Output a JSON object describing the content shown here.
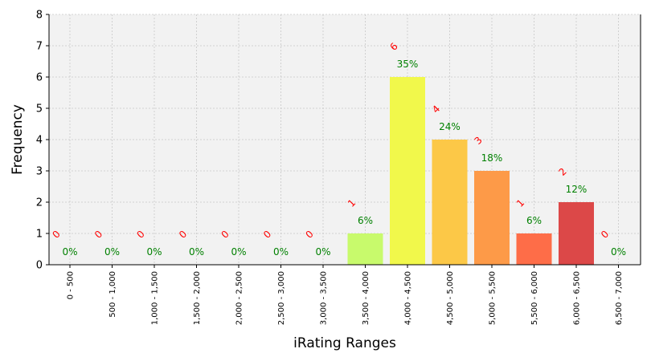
{
  "chart_data": {
    "type": "bar",
    "title": "",
    "xlabel": "iRating Ranges",
    "ylabel": "Frequency",
    "ylim": [
      0,
      8
    ],
    "yticks": [
      "0",
      "1",
      "2",
      "3",
      "4",
      "5",
      "6",
      "7",
      "8"
    ],
    "grid": true,
    "categories": [
      "0 - 500",
      "500 - 1,000",
      "1,000 - 1,500",
      "1,500 - 2,000",
      "2,000 - 2,500",
      "2,500 - 3,000",
      "3,000 - 3,500",
      "3,500 - 4,000",
      "4,000 - 4,500",
      "4,500 - 5,000",
      "5,000 - 5,500",
      "5,500 - 6,000",
      "6,000 - 6,500",
      "6,500 - 7,000"
    ],
    "values": [
      0,
      0,
      0,
      0,
      0,
      0,
      0,
      1,
      6,
      4,
      3,
      1,
      2,
      0
    ],
    "count_labels": [
      "0",
      "0",
      "0",
      "0",
      "0",
      "0",
      "0",
      "1",
      "6",
      "4",
      "3",
      "1",
      "2",
      "0"
    ],
    "percent_labels": [
      "0%",
      "0%",
      "0%",
      "0%",
      "0%",
      "0%",
      "0%",
      "6%",
      "35%",
      "24%",
      "18%",
      "6%",
      "12%",
      "0%"
    ],
    "bar_colors": [
      "#f2f2f2",
      "#f2f2f2",
      "#f2f2f2",
      "#f2f2f2",
      "#f2f2f2",
      "#f2f2f2",
      "#f2f2f2",
      "#c8fa6c",
      "#f1f84b",
      "#fcc847",
      "#fd9a48",
      "#fe6d48",
      "#dc4848",
      "#f2f2f2"
    ],
    "count_label_color": "#ff0000",
    "percent_label_color": "#008000",
    "plot_background": "#f2f2f2",
    "grid_color": "#c8c8c8"
  }
}
